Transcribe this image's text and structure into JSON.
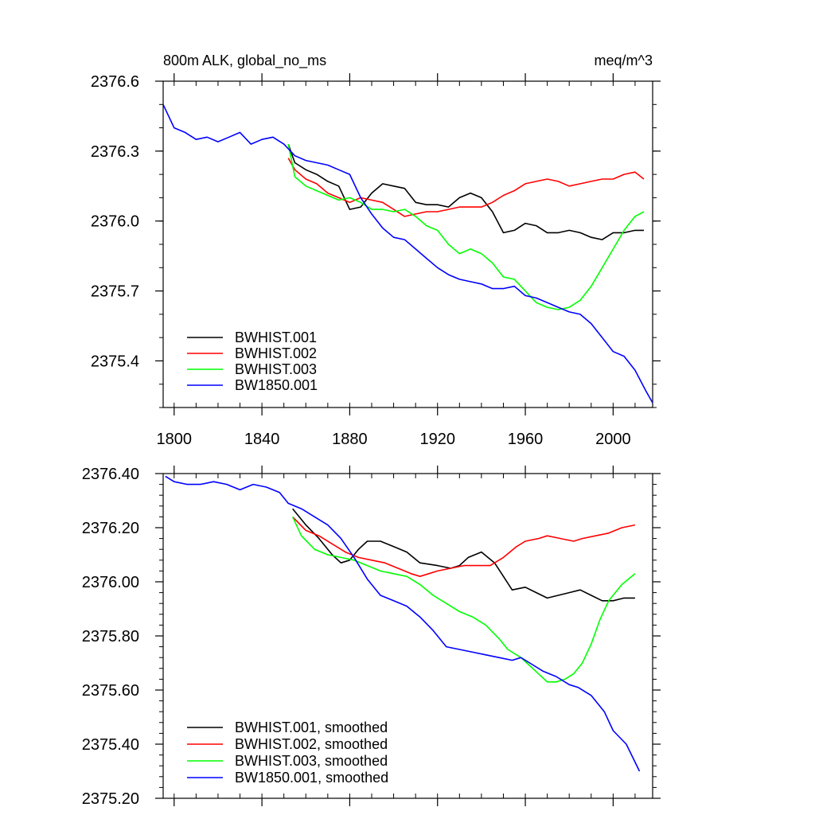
{
  "figure": {
    "left_title": "800m ALK, global_no_ms",
    "right_title": "meq/m^3"
  },
  "chart_data": [
    {
      "type": "line",
      "title": "800m ALK, global_no_ms",
      "units": "meq/m^3",
      "xlabel": "",
      "ylabel": "",
      "xlim": [
        1795,
        2018
      ],
      "ylim": [
        2375.2,
        2376.6
      ],
      "xticks": [
        1800,
        1840,
        1880,
        1920,
        1960,
        2000
      ],
      "xtick_labels": [
        "1800",
        "1840",
        "1880",
        "1920",
        "1960",
        "2000"
      ],
      "yticks": [
        2375.4,
        2375.7,
        2376.0,
        2376.3,
        2376.6
      ],
      "ytick_labels": [
        "2375.4",
        "2375.7",
        "2376.0",
        "2376.3",
        "2376.6"
      ],
      "grid": false,
      "legend_position": "bottom-left",
      "series": [
        {
          "name": "BWHIST.001",
          "color": "#000000",
          "x": [
            1852,
            1855,
            1860,
            1865,
            1870,
            1875,
            1880,
            1885,
            1890,
            1895,
            1900,
            1905,
            1910,
            1915,
            1920,
            1925,
            1930,
            1935,
            1940,
            1945,
            1950,
            1955,
            1960,
            1965,
            1970,
            1975,
            1980,
            1985,
            1990,
            1995,
            2000,
            2005,
            2010,
            2014
          ],
          "y": [
            2376.33,
            2376.25,
            2376.22,
            2376.2,
            2376.17,
            2376.15,
            2376.05,
            2376.06,
            2376.12,
            2376.16,
            2376.15,
            2376.14,
            2376.08,
            2376.07,
            2376.07,
            2376.06,
            2376.1,
            2376.12,
            2376.1,
            2376.04,
            2375.95,
            2375.96,
            2375.99,
            2375.98,
            2375.95,
            2375.95,
            2375.96,
            2375.95,
            2375.93,
            2375.92,
            2375.95,
            2375.95,
            2375.96,
            2375.96
          ]
        },
        {
          "name": "BWHIST.002",
          "color": "#ff0000",
          "x": [
            1852,
            1855,
            1860,
            1865,
            1870,
            1875,
            1880,
            1885,
            1890,
            1895,
            1900,
            1905,
            1910,
            1915,
            1920,
            1925,
            1930,
            1935,
            1940,
            1945,
            1950,
            1955,
            1960,
            1965,
            1970,
            1975,
            1980,
            1985,
            1990,
            1995,
            2000,
            2005,
            2010,
            2014
          ],
          "y": [
            2376.27,
            2376.22,
            2376.18,
            2376.16,
            2376.12,
            2376.1,
            2376.08,
            2376.1,
            2376.09,
            2376.08,
            2376.05,
            2376.02,
            2376.03,
            2376.04,
            2376.04,
            2376.05,
            2376.06,
            2376.06,
            2376.06,
            2376.08,
            2376.11,
            2376.13,
            2376.16,
            2376.17,
            2376.18,
            2376.17,
            2376.15,
            2376.16,
            2376.17,
            2376.18,
            2376.18,
            2376.2,
            2376.21,
            2376.18
          ]
        },
        {
          "name": "BWHIST.003",
          "color": "#00ff00",
          "x": [
            1852,
            1855,
            1860,
            1865,
            1870,
            1875,
            1880,
            1885,
            1890,
            1895,
            1900,
            1905,
            1910,
            1915,
            1920,
            1925,
            1930,
            1935,
            1940,
            1945,
            1950,
            1955,
            1960,
            1965,
            1970,
            1975,
            1980,
            1985,
            1990,
            1995,
            2000,
            2005,
            2010,
            2014
          ],
          "y": [
            2376.33,
            2376.19,
            2376.15,
            2376.13,
            2376.11,
            2376.09,
            2376.1,
            2376.08,
            2376.05,
            2376.05,
            2376.04,
            2376.05,
            2376.02,
            2375.98,
            2375.96,
            2375.9,
            2375.86,
            2375.88,
            2375.86,
            2375.82,
            2375.76,
            2375.75,
            2375.7,
            2375.65,
            2375.63,
            2375.62,
            2375.63,
            2375.66,
            2375.72,
            2375.8,
            2375.88,
            2375.96,
            2376.02,
            2376.04
          ]
        },
        {
          "name": "BW1850.001",
          "color": "#0000ff",
          "x": [
            1795,
            1800,
            1805,
            1810,
            1815,
            1820,
            1825,
            1830,
            1835,
            1840,
            1845,
            1850,
            1855,
            1860,
            1865,
            1870,
            1875,
            1880,
            1885,
            1890,
            1895,
            1900,
            1905,
            1910,
            1915,
            1920,
            1925,
            1930,
            1935,
            1940,
            1945,
            1950,
            1955,
            1960,
            1965,
            1970,
            1975,
            1980,
            1985,
            1990,
            1995,
            2000,
            2005,
            2010,
            2015,
            2018
          ],
          "y": [
            2376.5,
            2376.4,
            2376.38,
            2376.35,
            2376.36,
            2376.34,
            2376.36,
            2376.38,
            2376.33,
            2376.35,
            2376.36,
            2376.33,
            2376.28,
            2376.26,
            2376.25,
            2376.24,
            2376.22,
            2376.2,
            2376.1,
            2376.03,
            2375.97,
            2375.93,
            2375.92,
            2375.88,
            2375.84,
            2375.8,
            2375.77,
            2375.75,
            2375.74,
            2375.73,
            2375.71,
            2375.71,
            2375.72,
            2375.68,
            2375.67,
            2375.65,
            2375.63,
            2375.61,
            2375.6,
            2375.56,
            2375.5,
            2375.44,
            2375.42,
            2375.36,
            2375.27,
            2375.22
          ]
        }
      ]
    },
    {
      "type": "line",
      "title": "",
      "xlabel": "",
      "ylabel": "",
      "xlim": [
        1795,
        2018
      ],
      "ylim": [
        2375.2,
        2376.4
      ],
      "yticks": [
        2375.2,
        2375.4,
        2375.6,
        2375.8,
        2376.0,
        2376.2,
        2376.4
      ],
      "ytick_labels": [
        "2375.20",
        "2375.40",
        "2375.60",
        "2375.80",
        "2376.00",
        "2376.20",
        "2376.40"
      ],
      "grid": false,
      "legend_position": "bottom-left",
      "series": [
        {
          "name": "BWHIST.001, smoothed",
          "color": "#000000",
          "x": [
            1854,
            1860,
            1866,
            1872,
            1876,
            1880,
            1884,
            1888,
            1894,
            1900,
            1906,
            1912,
            1920,
            1926,
            1930,
            1934,
            1940,
            1946,
            1950,
            1954,
            1960,
            1965,
            1970,
            1975,
            1980,
            1985,
            1990,
            1995,
            2000,
            2005,
            2010
          ],
          "y": [
            2376.27,
            2376.21,
            2376.16,
            2376.1,
            2376.07,
            2376.08,
            2376.12,
            2376.15,
            2376.15,
            2376.13,
            2376.11,
            2376.07,
            2376.06,
            2376.05,
            2376.06,
            2376.09,
            2376.11,
            2376.07,
            2376.02,
            2375.97,
            2375.98,
            2375.96,
            2375.94,
            2375.95,
            2375.96,
            2375.97,
            2375.95,
            2375.93,
            2375.93,
            2375.94,
            2375.94
          ]
        },
        {
          "name": "BWHIST.002, smoothed",
          "color": "#ff0000",
          "x": [
            1854,
            1860,
            1866,
            1872,
            1878,
            1884,
            1890,
            1896,
            1902,
            1908,
            1912,
            1916,
            1920,
            1926,
            1932,
            1938,
            1944,
            1950,
            1956,
            1960,
            1966,
            1970,
            1976,
            1982,
            1986,
            1992,
            1998,
            2004,
            2010
          ],
          "y": [
            2376.24,
            2376.19,
            2376.17,
            2376.14,
            2376.11,
            2376.09,
            2376.08,
            2376.07,
            2376.05,
            2376.03,
            2376.02,
            2376.03,
            2376.04,
            2376.05,
            2376.06,
            2376.06,
            2376.06,
            2376.09,
            2376.13,
            2376.15,
            2376.16,
            2376.17,
            2376.16,
            2376.15,
            2376.16,
            2376.17,
            2376.18,
            2376.2,
            2376.21
          ]
        },
        {
          "name": "BWHIST.003, smoothed",
          "color": "#00ff00",
          "x": [
            1854,
            1858,
            1864,
            1870,
            1876,
            1882,
            1888,
            1894,
            1900,
            1906,
            1912,
            1918,
            1924,
            1930,
            1936,
            1942,
            1948,
            1952,
            1958,
            1962,
            1966,
            1970,
            1974,
            1978,
            1982,
            1986,
            1990,
            1994,
            1998,
            2004,
            2010
          ],
          "y": [
            2376.24,
            2376.17,
            2376.12,
            2376.1,
            2376.09,
            2376.08,
            2376.06,
            2376.04,
            2376.03,
            2376.02,
            2375.99,
            2375.95,
            2375.92,
            2375.89,
            2375.87,
            2375.84,
            2375.79,
            2375.75,
            2375.72,
            2375.69,
            2375.66,
            2375.63,
            2375.63,
            2375.64,
            2375.66,
            2375.7,
            2375.77,
            2375.86,
            2375.93,
            2375.99,
            2376.03
          ]
        },
        {
          "name": "BW1850.001, smoothed",
          "color": "#0000ff",
          "x": [
            1796,
            1800,
            1806,
            1812,
            1818,
            1824,
            1830,
            1836,
            1842,
            1848,
            1852,
            1858,
            1864,
            1870,
            1876,
            1882,
            1888,
            1894,
            1900,
            1906,
            1912,
            1918,
            1924,
            1930,
            1936,
            1942,
            1948,
            1954,
            1958,
            1962,
            1968,
            1974,
            1980,
            1984,
            1990,
            1996,
            2000,
            2006,
            2012
          ],
          "y": [
            2376.39,
            2376.37,
            2376.36,
            2376.36,
            2376.37,
            2376.36,
            2376.34,
            2376.36,
            2376.35,
            2376.33,
            2376.29,
            2376.27,
            2376.24,
            2376.21,
            2376.16,
            2376.09,
            2376.01,
            2375.95,
            2375.93,
            2375.91,
            2375.87,
            2375.82,
            2375.76,
            2375.75,
            2375.74,
            2375.73,
            2375.72,
            2375.71,
            2375.72,
            2375.7,
            2375.67,
            2375.65,
            2375.62,
            2375.61,
            2375.58,
            2375.52,
            2375.45,
            2375.4,
            2375.3
          ]
        }
      ]
    }
  ]
}
